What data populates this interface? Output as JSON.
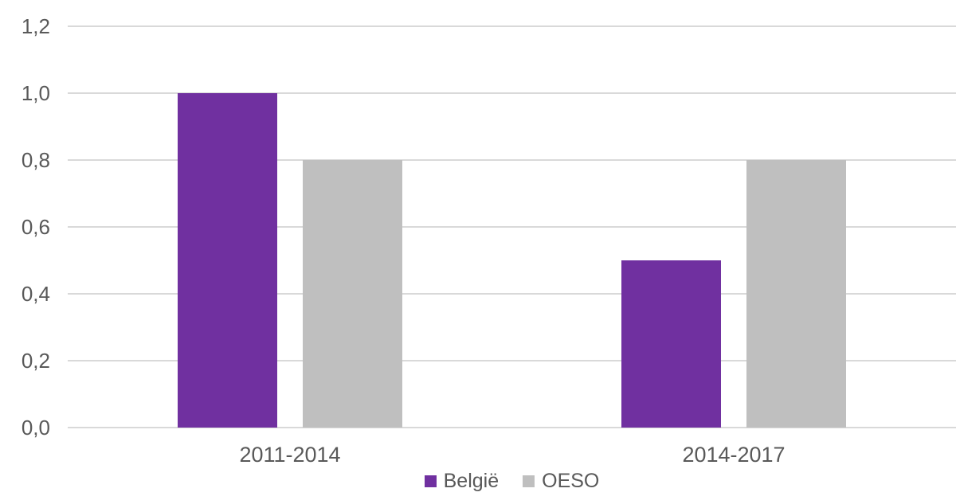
{
  "chart_data": {
    "type": "bar",
    "title": "",
    "xlabel": "",
    "ylabel": "",
    "categories": [
      "2011-2014",
      "2014-2017"
    ],
    "series": [
      {
        "name": "België",
        "color": "#7030A0",
        "values": [
          1.0,
          0.5
        ]
      },
      {
        "name": "OESO",
        "color": "#BFBFBF",
        "values": [
          0.8,
          0.8
        ]
      }
    ],
    "ylim": [
      0,
      1.2
    ],
    "ytick_step": 0.2,
    "ytick_labels": [
      "0,0",
      "0,2",
      "0,4",
      "0,6",
      "0,8",
      "1,0",
      "1,2"
    ],
    "decimal_separator": ",",
    "grid": "horizontal",
    "legend_position": "bottom-center"
  },
  "colors": {
    "background": "#FFFFFF",
    "gridline": "#D9D9D9",
    "text": "#595959"
  }
}
